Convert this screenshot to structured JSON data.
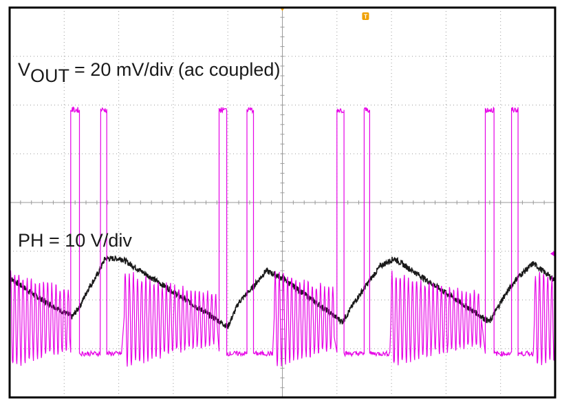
{
  "chart_data": {
    "type": "line",
    "title": "",
    "grid": true,
    "grid_divisions": {
      "x": 10,
      "y": 8
    },
    "colors": {
      "vout": "#1a1a1a",
      "ph": "#e600e6",
      "trigger": "#f0a000",
      "grid": "#9a9a9a",
      "frame": "#000000"
    },
    "trigger_marker_label": "T",
    "channel_labels": {
      "vout": {
        "main": "V",
        "sub": "OUT",
        "rest": " = 20 mV/div (ac coupled)"
      },
      "ph": "PH = 10 V/div"
    },
    "series": [
      {
        "name": "VOUT",
        "unit_per_div": "20 mV/div",
        "x_div": [
          0.0,
          0.6,
          1.15,
          1.3,
          1.45,
          1.6,
          1.75,
          2.05,
          4.0,
          4.2,
          4.45,
          4.7,
          5.0,
          6.1,
          6.35,
          6.6,
          6.8,
          7.05,
          8.8,
          9.05,
          9.3,
          9.6,
          10.0
        ],
        "y_div": [
          -1.55,
          -2.0,
          -2.35,
          -2.1,
          -1.75,
          -1.5,
          -1.15,
          -1.15,
          -2.55,
          -2.05,
          -1.75,
          -1.4,
          -1.55,
          -2.45,
          -2.0,
          -1.6,
          -1.3,
          -1.15,
          -2.45,
          -1.95,
          -1.55,
          -1.25,
          -1.6
        ]
      },
      {
        "name": "PH",
        "unit_per_div": "10 V/div",
        "events": [
          {
            "ring_start": 0.0,
            "ring_end": 1.1,
            "p1": [
              1.12,
              1.28
            ],
            "p2": [
              1.67,
              1.78
            ],
            "low_end": 2.05
          },
          {
            "ring_start": 2.1,
            "ring_end": 3.8,
            "p1": [
              3.84,
              3.98
            ],
            "p2": [
              4.35,
              4.47
            ],
            "low_end": 4.82
          },
          {
            "ring_start": 4.85,
            "ring_end": 5.95,
            "p1": [
              6.0,
              6.13
            ],
            "p2": [
              6.5,
              6.6
            ],
            "low_end": 6.97
          },
          {
            "ring_start": 6.99,
            "ring_end": 8.65,
            "p1": [
              8.72,
              8.88
            ],
            "p2": [
              9.2,
              9.32
            ],
            "low_end": 9.6
          },
          {
            "ring_start": 9.62,
            "ring_end": 10.0
          }
        ],
        "levels_div": {
          "ring_center": -2.4,
          "high": 1.9,
          "low": -3.1
        }
      }
    ]
  }
}
